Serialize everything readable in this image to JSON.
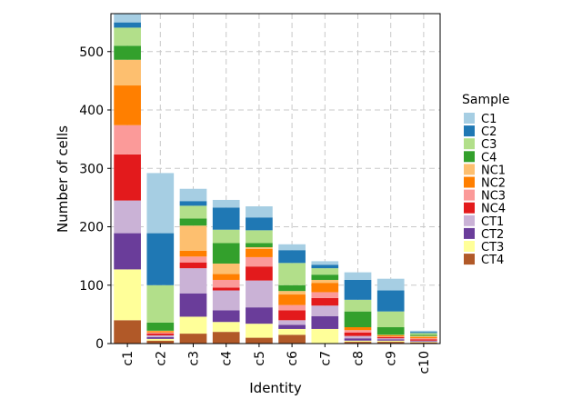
{
  "chart_data": {
    "type": "bar",
    "stacked": true,
    "title": "",
    "xlabel": "Identity",
    "ylabel": "Number of cells",
    "ylim": [
      0,
      565
    ],
    "yticks": [
      0,
      100,
      200,
      300,
      400,
      500
    ],
    "grid": true,
    "legend_position": "right",
    "legend_title": "Sample",
    "categories": [
      "c1",
      "c2",
      "c3",
      "c4",
      "c5",
      "c6",
      "c7",
      "c8",
      "c9",
      "c10"
    ],
    "series": [
      {
        "name": "CT4",
        "color": "#B15928",
        "values": [
          40,
          5,
          17,
          20,
          10,
          15,
          0,
          3,
          3,
          2
        ]
      },
      {
        "name": "CT3",
        "color": "#FFFF99",
        "values": [
          87,
          3,
          29,
          17,
          24,
          10,
          25,
          2,
          2,
          1
        ]
      },
      {
        "name": "CT2",
        "color": "#6A3D9A",
        "values": [
          62,
          3,
          40,
          20,
          28,
          7,
          22,
          4,
          2,
          1
        ]
      },
      {
        "name": "CT1",
        "color": "#CAB2D6",
        "values": [
          56,
          3,
          43,
          34,
          46,
          8,
          18,
          4,
          2,
          1
        ]
      },
      {
        "name": "NC4",
        "color": "#E31A1C",
        "values": [
          79,
          3,
          10,
          5,
          24,
          17,
          13,
          6,
          2,
          2
        ]
      },
      {
        "name": "NC3",
        "color": "#FB9A99",
        "values": [
          50,
          2,
          10,
          13,
          16,
          9,
          10,
          4,
          1,
          2
        ]
      },
      {
        "name": "NC2",
        "color": "#FF7F00",
        "values": [
          68,
          2,
          10,
          10,
          14,
          18,
          16,
          5,
          2,
          2
        ]
      },
      {
        "name": "NC1",
        "color": "#FDBF6F",
        "values": [
          44,
          1,
          43,
          18,
          3,
          6,
          5,
          0,
          1,
          2
        ]
      },
      {
        "name": "C4",
        "color": "#33A02C",
        "values": [
          24,
          14,
          12,
          35,
          7,
          10,
          9,
          27,
          13,
          2
        ]
      },
      {
        "name": "C3",
        "color": "#B2DF8A",
        "values": [
          31,
          64,
          22,
          23,
          22,
          38,
          11,
          20,
          27,
          3
        ]
      },
      {
        "name": "C2",
        "color": "#1F78B4",
        "values": [
          9,
          89,
          8,
          38,
          22,
          22,
          6,
          34,
          36,
          2
        ]
      },
      {
        "name": "C1",
        "color": "#A6CEE3",
        "values": [
          15,
          103,
          21,
          13,
          19,
          10,
          6,
          13,
          20,
          2
        ]
      }
    ],
    "legend_order": [
      "C1",
      "C2",
      "C3",
      "C4",
      "NC1",
      "NC2",
      "NC3",
      "NC4",
      "CT1",
      "CT2",
      "CT3",
      "CT4"
    ]
  }
}
